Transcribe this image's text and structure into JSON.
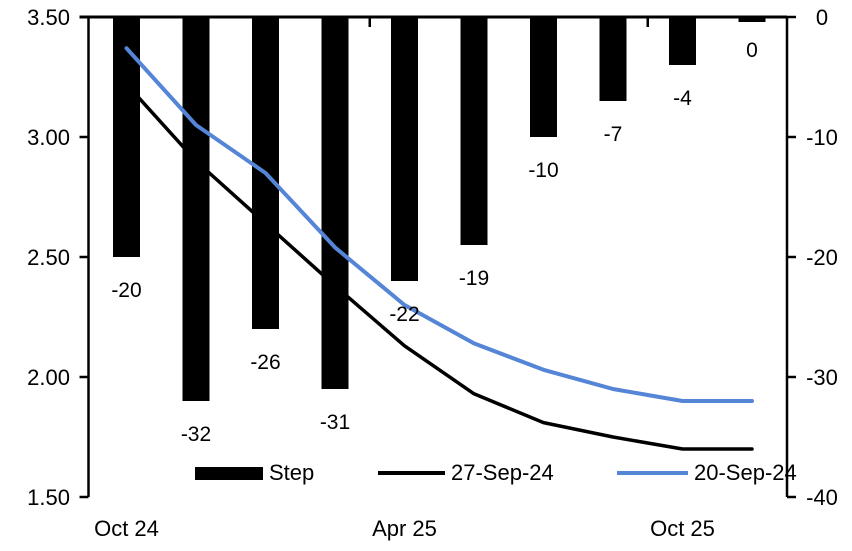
{
  "chart_data": {
    "type": "combo",
    "title": "",
    "categories": [
      "Oct 24",
      "",
      "",
      "",
      "Apr 25",
      "",
      "",
      "",
      "Oct 25",
      ""
    ],
    "series": [
      {
        "name": "Step",
        "type": "bar",
        "axis": "right",
        "color": "#000000",
        "values": [
          -20,
          -32,
          -26,
          -31,
          -22,
          -19,
          -10,
          -7,
          -4,
          0
        ],
        "data_labels": [
          "-20",
          "-32",
          "-26",
          "-31",
          "-22",
          "-19",
          "-10",
          "-7",
          "-4",
          "0"
        ]
      },
      {
        "name": "27-Sep-24",
        "type": "line",
        "axis": "left",
        "color": "#000000",
        "values": [
          3.22,
          2.9,
          2.64,
          2.38,
          2.13,
          1.93,
          1.81,
          1.75,
          1.7,
          1.7
        ]
      },
      {
        "name": "20-Sep-24",
        "type": "line",
        "axis": "left",
        "color": "#5585D6",
        "values": [
          3.37,
          3.05,
          2.85,
          2.54,
          2.3,
          2.14,
          2.03,
          1.95,
          1.9,
          1.9
        ]
      }
    ],
    "left_axis": {
      "min": 1.5,
      "max": 3.5,
      "tick_labels": [
        "3.50",
        "3.00",
        "2.50",
        "2.00",
        "1.50"
      ]
    },
    "right_axis": {
      "min": -40,
      "max": 0,
      "tick_labels": [
        "0",
        "-10",
        "-20",
        "-30",
        "-40"
      ]
    },
    "x_axis": {
      "tick_labels": [
        {
          "index": 0,
          "label": "Oct 24"
        },
        {
          "index": 4,
          "label": "Apr 25"
        },
        {
          "index": 8,
          "label": "Oct 25"
        }
      ],
      "boundary_tick_indices": [
        4,
        8
      ]
    },
    "legend": [
      {
        "label": "Step",
        "swatch": "bar"
      },
      {
        "label": "27-Sep-24",
        "swatch": "line-black"
      },
      {
        "label": "20-Sep-24",
        "swatch": "line-blue"
      }
    ],
    "grid": false,
    "legend_position": "bottom-inside"
  }
}
